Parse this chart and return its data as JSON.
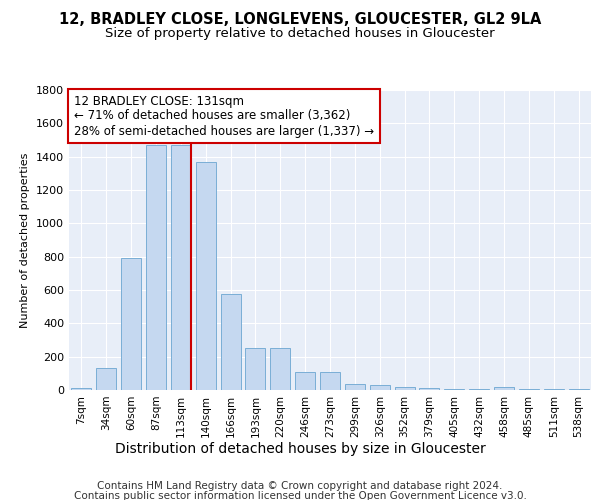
{
  "title1": "12, BRADLEY CLOSE, LONGLEVENS, GLOUCESTER, GL2 9LA",
  "title2": "Size of property relative to detached houses in Gloucester",
  "xlabel": "Distribution of detached houses by size in Gloucester",
  "ylabel": "Number of detached properties",
  "footer_line1": "Contains HM Land Registry data © Crown copyright and database right 2024.",
  "footer_line2": "Contains public sector information licensed under the Open Government Licence v3.0.",
  "categories": [
    "7sqm",
    "34sqm",
    "60sqm",
    "87sqm",
    "113sqm",
    "140sqm",
    "166sqm",
    "193sqm",
    "220sqm",
    "246sqm",
    "273sqm",
    "299sqm",
    "326sqm",
    "352sqm",
    "379sqm",
    "405sqm",
    "432sqm",
    "458sqm",
    "485sqm",
    "511sqm",
    "538sqm"
  ],
  "values": [
    15,
    130,
    790,
    1470,
    1470,
    1370,
    575,
    250,
    250,
    110,
    110,
    35,
    28,
    18,
    15,
    5,
    5,
    18,
    5,
    5,
    5
  ],
  "bar_color": "#c5d8f0",
  "bar_edge_color": "#7aaed6",
  "vline_x": 4.5,
  "vline_color": "#cc0000",
  "annotation_text": "12 BRADLEY CLOSE: 131sqm\n← 71% of detached houses are smaller (3,362)\n28% of semi-detached houses are larger (1,337) →",
  "ylim": [
    0,
    1800
  ],
  "yticks": [
    0,
    200,
    400,
    600,
    800,
    1000,
    1200,
    1400,
    1600,
    1800
  ],
  "bg_color": "#e8eef8",
  "grid_color": "white",
  "title1_fontsize": 10.5,
  "title2_fontsize": 9.5,
  "ylabel_fontsize": 8,
  "xlabel_fontsize": 10,
  "tick_fontsize": 7.5,
  "ytick_fontsize": 8,
  "footer_fontsize": 7.5,
  "annot_fontsize": 8.5
}
